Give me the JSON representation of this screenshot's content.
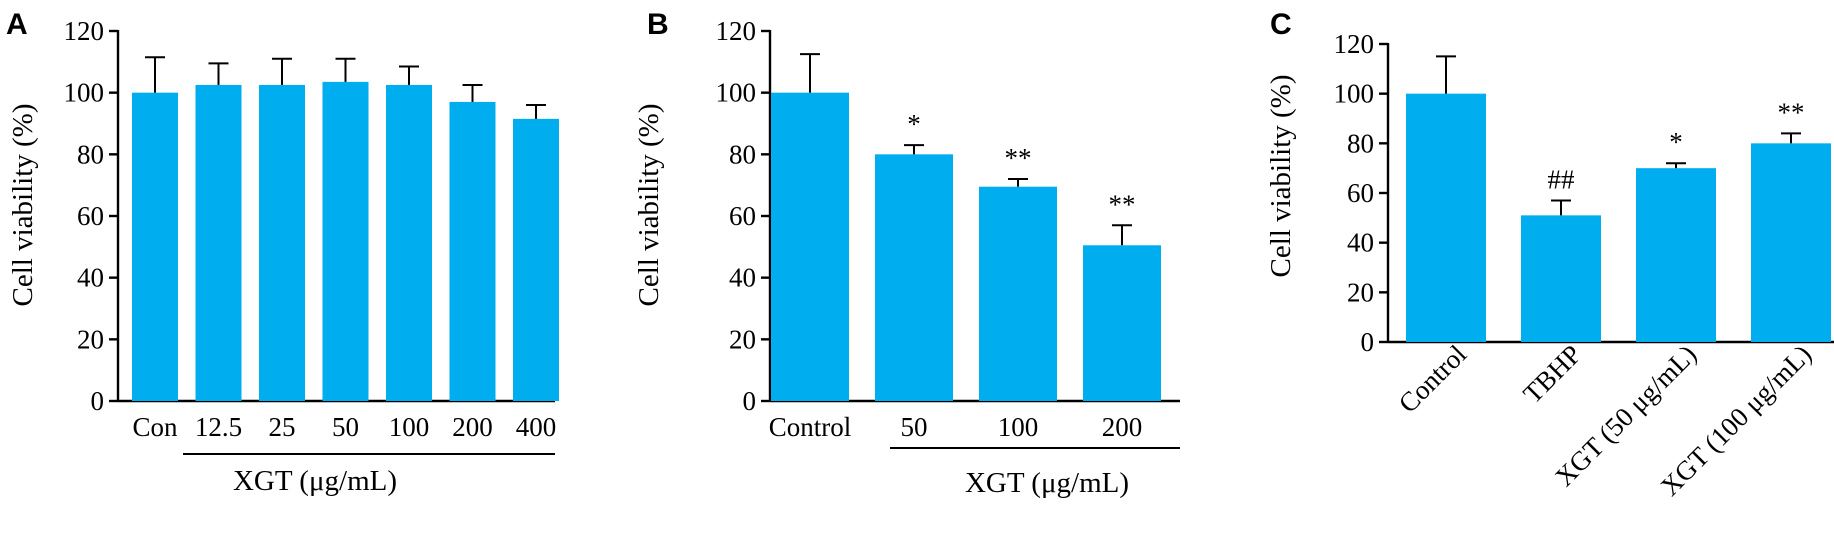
{
  "colors": {
    "bar": "#00AEEF"
  },
  "chart_data": [
    {
      "panel": "A",
      "type": "bar",
      "ylabel": "Cell viability (%)",
      "group_label": "XGT (μg/mL)",
      "ylim": [
        0,
        120
      ],
      "yticks": [
        "0",
        "20",
        "40",
        "60",
        "80",
        "100",
        "120"
      ],
      "categories": [
        "Con",
        "12.5",
        "25",
        "50",
        "100",
        "200",
        "400"
      ],
      "values": [
        100,
        102.5,
        102.5,
        103.5,
        102.5,
        97,
        91.5
      ],
      "errors": [
        11.5,
        7,
        8.5,
        7.5,
        6,
        5.5,
        4.5
      ],
      "annotations": [
        "",
        "",
        "",
        "",
        "",
        "",
        ""
      ]
    },
    {
      "panel": "B",
      "type": "bar",
      "ylabel": "Cell viability (%)",
      "group_label": "XGT (μg/mL)",
      "ylim": [
        0,
        120
      ],
      "yticks": [
        "0",
        "20",
        "40",
        "60",
        "80",
        "100",
        "120"
      ],
      "categories": [
        "Control",
        "50",
        "100",
        "200"
      ],
      "values": [
        100,
        80,
        69.5,
        50.5
      ],
      "errors": [
        12.5,
        3,
        2.5,
        6.5
      ],
      "annotations": [
        "",
        "*",
        "**",
        "**"
      ]
    },
    {
      "panel": "C",
      "type": "bar",
      "ylabel": "Cell viability (%)",
      "ylim": [
        0,
        120
      ],
      "yticks": [
        "0",
        "20",
        "40",
        "60",
        "80",
        "100",
        "120"
      ],
      "categories": [
        "Control",
        "TBHP",
        "XGT (50 μg/mL)",
        "XGT (100 μg/mL)"
      ],
      "values": [
        100,
        51,
        70,
        80
      ],
      "errors": [
        15,
        6,
        2,
        4
      ],
      "annotations": [
        "",
        "##",
        "*",
        "**"
      ]
    }
  ]
}
